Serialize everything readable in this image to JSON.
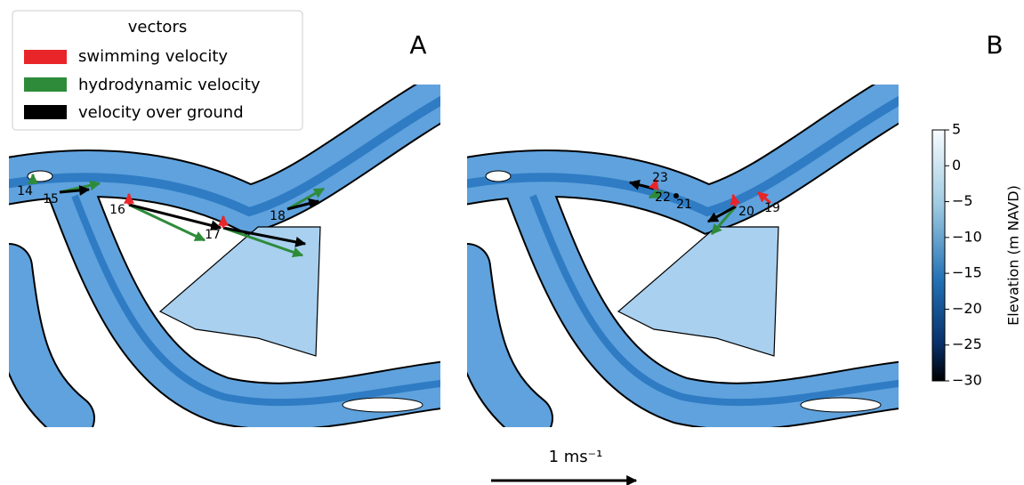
{
  "legend": {
    "title": "vectors",
    "items": [
      "swimming velocity",
      "hydrodynamic velocity",
      "velocity over ground"
    ]
  },
  "panels": [
    {
      "label": "A",
      "points": [
        "14",
        "15",
        "16",
        "17",
        "18"
      ]
    },
    {
      "label": "B",
      "points": [
        "23",
        "22",
        "21",
        "20",
        "19"
      ]
    }
  ],
  "colorbar": {
    "label": "Elevation (m NAVD)",
    "lim": [
      -30,
      5
    ],
    "ticks": [
      5,
      0,
      {
        "value": -5,
        "label": "−5"
      },
      {
        "value": -10,
        "label": "−10"
      },
      {
        "value": -15,
        "label": "−15"
      },
      {
        "value": -20,
        "label": "−20"
      },
      {
        "value": -25,
        "label": "−25"
      },
      {
        "value": -30,
        "label": "−30"
      }
    ]
  },
  "scale_bar": {
    "label": "1 ms⁻¹"
  }
}
